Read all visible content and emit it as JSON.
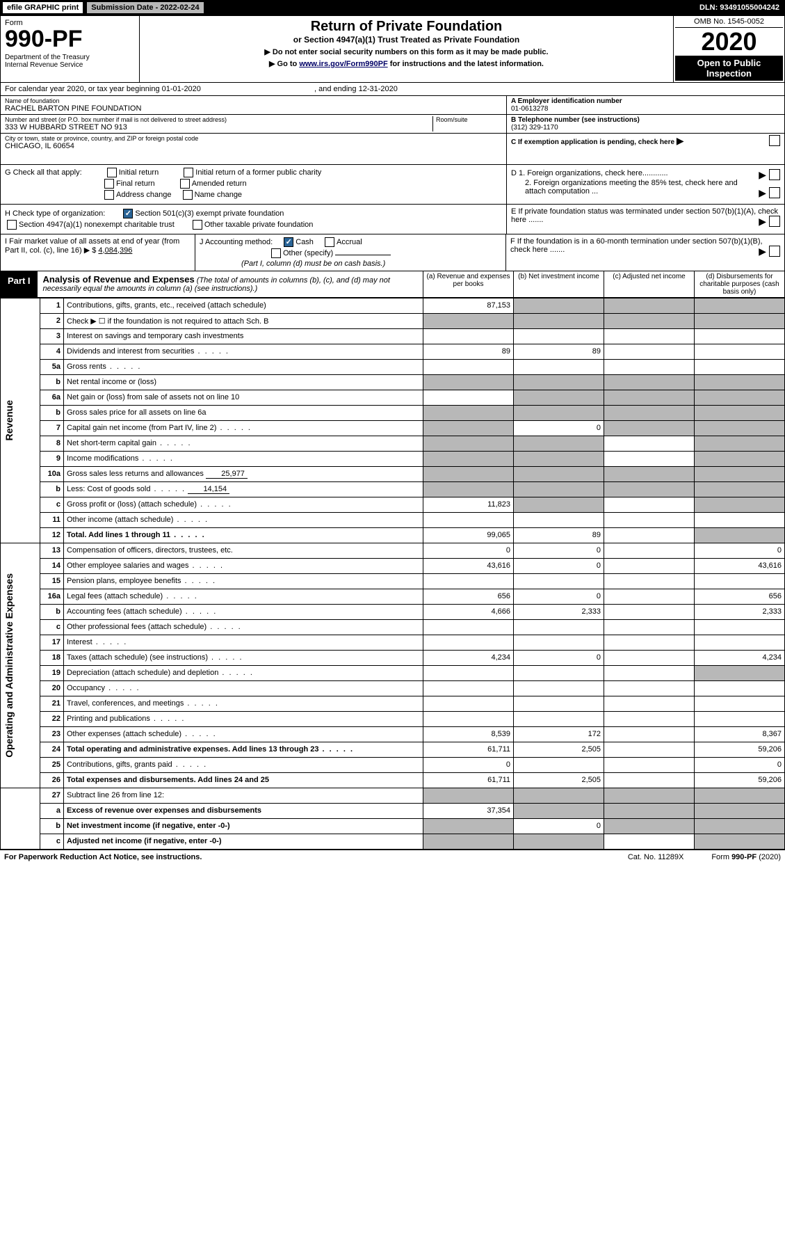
{
  "topbar": {
    "efile": "efile GRAPHIC print",
    "submission": "Submission Date - 2022-02-24",
    "dln": "DLN: 93491055004242"
  },
  "header": {
    "form_label": "Form",
    "form_number": "990-PF",
    "dept": "Department of the Treasury\nInternal Revenue Service",
    "title": "Return of Private Foundation",
    "subtitle": "or Section 4947(a)(1) Trust Treated as Private Foundation",
    "note1": "▶ Do not enter social security numbers on this form as it may be made public.",
    "note2_pre": "▶ Go to ",
    "note2_link": "www.irs.gov/Form990PF",
    "note2_post": " for instructions and the latest information.",
    "omb": "OMB No. 1545-0052",
    "year": "2020",
    "open": "Open to Public Inspection"
  },
  "calyear": {
    "label": "For calendar year 2020, or tax year beginning ",
    "begin": "01-01-2020",
    "mid": " , and ending ",
    "end": "12-31-2020"
  },
  "name": {
    "label": "Name of foundation",
    "value": "RACHEL BARTON PINE FOUNDATION"
  },
  "ein": {
    "label": "A Employer identification number",
    "value": "01-0613278"
  },
  "address": {
    "label": "Number and street (or P.O. box number if mail is not delivered to street address)",
    "value": "333 W HUBBARD STREET NO 913",
    "room_label": "Room/suite"
  },
  "phone": {
    "label": "B Telephone number (see instructions)",
    "value": "(312) 329-1170"
  },
  "city": {
    "label": "City or town, state or province, country, and ZIP or foreign postal code",
    "value": "CHICAGO, IL  60654"
  },
  "c_label": "C If exemption application is pending, check here",
  "g": {
    "label": "G Check all that apply:",
    "opts": [
      "Initial return",
      "Initial return of a former public charity",
      "Final return",
      "Amended return",
      "Address change",
      "Name change"
    ]
  },
  "d": {
    "d1": "D 1. Foreign organizations, check here............",
    "d2": "2. Foreign organizations meeting the 85% test, check here and attach computation ..."
  },
  "h": {
    "label": "H Check type of organization:",
    "o1": "Section 501(c)(3) exempt private foundation",
    "o2": "Section 4947(a)(1) nonexempt charitable trust",
    "o3": "Other taxable private foundation"
  },
  "e_label": "E  If private foundation status was terminated under section 507(b)(1)(A), check here .......",
  "i": {
    "label": "I Fair market value of all assets at end of year (from Part II, col. (c), line 16) ▶ $",
    "value": "4,084,396"
  },
  "j": {
    "label": "J Accounting method:",
    "cash": "Cash",
    "accrual": "Accrual",
    "other": "Other (specify)",
    "note": "(Part I, column (d) must be on cash basis.)"
  },
  "f_label": "F  If the foundation is in a 60-month termination under section 507(b)(1)(B), check here .......",
  "part1": {
    "tag": "Part I",
    "title": "Analysis of Revenue and Expenses",
    "note": " (The total of amounts in columns (b), (c), and (d) may not necessarily equal the amounts in column (a) (see instructions).)",
    "cols": {
      "a": "(a) Revenue and expenses per books",
      "b": "(b) Net investment income",
      "c": "(c) Adjusted net income",
      "d": "(d) Disbursements for charitable purposes (cash basis only)"
    }
  },
  "vert": {
    "revenue": "Revenue",
    "expenses": "Operating and Administrative Expenses"
  },
  "rows": {
    "r1": {
      "n": "1",
      "d": "Contributions, gifts, grants, etc., received (attach schedule)",
      "a": "87,153"
    },
    "r2": {
      "n": "2",
      "d": "Check ▶ ☐ if the foundation is not required to attach Sch. B"
    },
    "r3": {
      "n": "3",
      "d": "Interest on savings and temporary cash investments"
    },
    "r4": {
      "n": "4",
      "d": "Dividends and interest from securities",
      "a": "89",
      "b": "89"
    },
    "r5a": {
      "n": "5a",
      "d": "Gross rents"
    },
    "r5b": {
      "n": "b",
      "d": "Net rental income or (loss)"
    },
    "r6a": {
      "n": "6a",
      "d": "Net gain or (loss) from sale of assets not on line 10"
    },
    "r6b": {
      "n": "b",
      "d": "Gross sales price for all assets on line 6a"
    },
    "r7": {
      "n": "7",
      "d": "Capital gain net income (from Part IV, line 2)",
      "b": "0"
    },
    "r8": {
      "n": "8",
      "d": "Net short-term capital gain"
    },
    "r9": {
      "n": "9",
      "d": "Income modifications"
    },
    "r10a": {
      "n": "10a",
      "d": "Gross sales less returns and allowances",
      "box": "25,977"
    },
    "r10b": {
      "n": "b",
      "d": "Less: Cost of goods sold",
      "box": "14,154"
    },
    "r10c": {
      "n": "c",
      "d": "Gross profit or (loss) (attach schedule)",
      "a": "11,823"
    },
    "r11": {
      "n": "11",
      "d": "Other income (attach schedule)"
    },
    "r12": {
      "n": "12",
      "d": "Total. Add lines 1 through 11",
      "a": "99,065",
      "b": "89"
    },
    "r13": {
      "n": "13",
      "d": "Compensation of officers, directors, trustees, etc.",
      "a": "0",
      "b": "0",
      "dd": "0"
    },
    "r14": {
      "n": "14",
      "d": "Other employee salaries and wages",
      "a": "43,616",
      "b": "0",
      "dd": "43,616"
    },
    "r15": {
      "n": "15",
      "d": "Pension plans, employee benefits"
    },
    "r16a": {
      "n": "16a",
      "d": "Legal fees (attach schedule)",
      "a": "656",
      "b": "0",
      "dd": "656"
    },
    "r16b": {
      "n": "b",
      "d": "Accounting fees (attach schedule)",
      "a": "4,666",
      "b": "2,333",
      "dd": "2,333"
    },
    "r16c": {
      "n": "c",
      "d": "Other professional fees (attach schedule)"
    },
    "r17": {
      "n": "17",
      "d": "Interest"
    },
    "r18": {
      "n": "18",
      "d": "Taxes (attach schedule) (see instructions)",
      "a": "4,234",
      "b": "0",
      "dd": "4,234"
    },
    "r19": {
      "n": "19",
      "d": "Depreciation (attach schedule) and depletion"
    },
    "r20": {
      "n": "20",
      "d": "Occupancy"
    },
    "r21": {
      "n": "21",
      "d": "Travel, conferences, and meetings"
    },
    "r22": {
      "n": "22",
      "d": "Printing and publications"
    },
    "r23": {
      "n": "23",
      "d": "Other expenses (attach schedule)",
      "a": "8,539",
      "b": "172",
      "dd": "8,367"
    },
    "r24": {
      "n": "24",
      "d": "Total operating and administrative expenses. Add lines 13 through 23",
      "a": "61,711",
      "b": "2,505",
      "dd": "59,206"
    },
    "r25": {
      "n": "25",
      "d": "Contributions, gifts, grants paid",
      "a": "0",
      "dd": "0"
    },
    "r26": {
      "n": "26",
      "d": "Total expenses and disbursements. Add lines 24 and 25",
      "a": "61,711",
      "b": "2,505",
      "dd": "59,206"
    },
    "r27": {
      "n": "27",
      "d": "Subtract line 26 from line 12:"
    },
    "r27a": {
      "n": "a",
      "d": "Excess of revenue over expenses and disbursements",
      "a": "37,354"
    },
    "r27b": {
      "n": "b",
      "d": "Net investment income (if negative, enter -0-)",
      "b": "0"
    },
    "r27c": {
      "n": "c",
      "d": "Adjusted net income (if negative, enter -0-)"
    }
  },
  "footer": {
    "left": "For Paperwork Reduction Act Notice, see instructions.",
    "cat": "Cat. No. 11289X",
    "form": "Form 990-PF (2020)"
  },
  "colors": {
    "black": "#000000",
    "grey": "#b8b8b8",
    "link": "#000066",
    "check": "#2a6496"
  }
}
